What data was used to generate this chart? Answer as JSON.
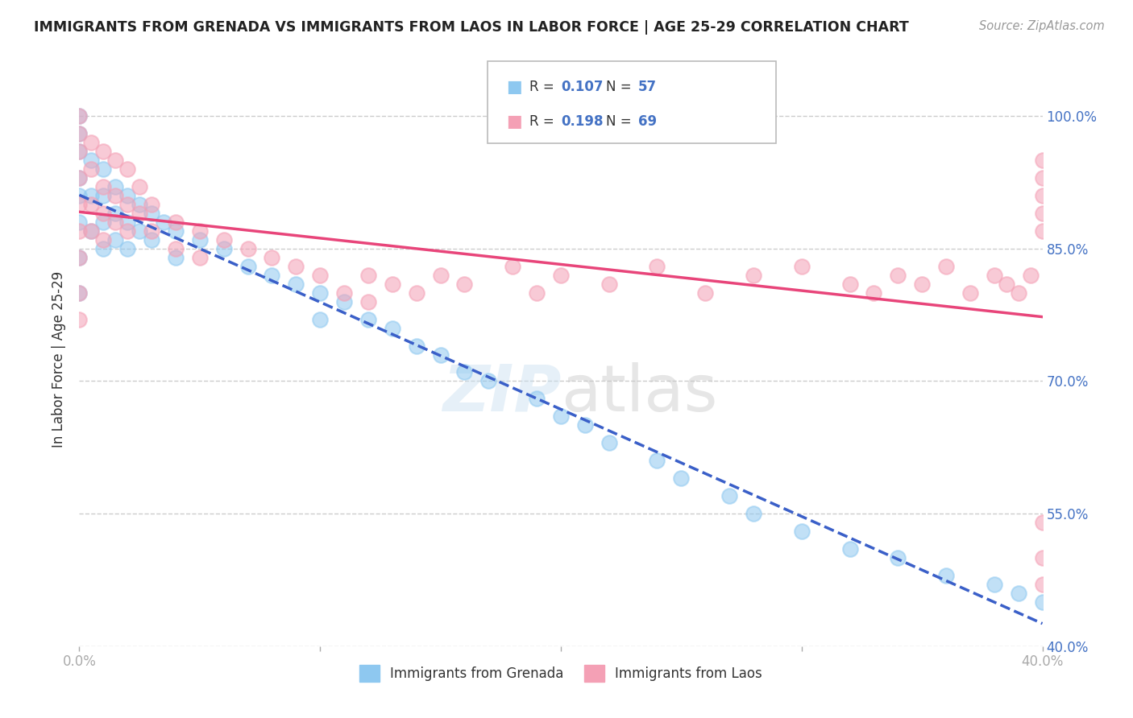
{
  "title": "IMMIGRANTS FROM GRENADA VS IMMIGRANTS FROM LAOS IN LABOR FORCE | AGE 25-29 CORRELATION CHART",
  "source": "Source: ZipAtlas.com",
  "ylabel": "In Labor Force | Age 25-29",
  "xmin": 0.0,
  "xmax": 0.4,
  "ymin": 0.4,
  "ymax": 1.05,
  "yticks": [
    0.4,
    0.55,
    0.7,
    0.85,
    1.0
  ],
  "ytick_labels": [
    "40.0%",
    "55.0%",
    "70.0%",
    "85.0%",
    "100.0%"
  ],
  "xticks": [
    0.0,
    0.1,
    0.2,
    0.3,
    0.4
  ],
  "xtick_labels": [
    "0.0%",
    "",
    "",
    "",
    "40.0%"
  ],
  "r_grenada": 0.107,
  "n_grenada": 57,
  "r_laos": 0.198,
  "n_laos": 69,
  "grenada_color": "#8ec8f0",
  "laos_color": "#f4a0b5",
  "trend_grenada_color": "#3a5fc8",
  "trend_laos_color": "#e8457a",
  "title_color": "#222222",
  "right_axis_color": "#4472c4",
  "background_color": "#ffffff",
  "grenada_x": [
    0.0,
    0.0,
    0.0,
    0.0,
    0.0,
    0.0,
    0.0,
    0.0,
    0.005,
    0.005,
    0.005,
    0.01,
    0.01,
    0.01,
    0.01,
    0.015,
    0.015,
    0.015,
    0.02,
    0.02,
    0.02,
    0.025,
    0.025,
    0.03,
    0.03,
    0.035,
    0.04,
    0.04,
    0.05,
    0.06,
    0.07,
    0.08,
    0.09,
    0.1,
    0.1,
    0.11,
    0.12,
    0.13,
    0.14,
    0.15,
    0.16,
    0.17,
    0.19,
    0.2,
    0.21,
    0.22,
    0.24,
    0.25,
    0.27,
    0.28,
    0.3,
    0.32,
    0.34,
    0.36,
    0.38,
    0.39,
    0.4
  ],
  "grenada_y": [
    1.0,
    0.98,
    0.96,
    0.93,
    0.91,
    0.88,
    0.84,
    0.8,
    0.95,
    0.91,
    0.87,
    0.94,
    0.91,
    0.88,
    0.85,
    0.92,
    0.89,
    0.86,
    0.91,
    0.88,
    0.85,
    0.9,
    0.87,
    0.89,
    0.86,
    0.88,
    0.87,
    0.84,
    0.86,
    0.85,
    0.83,
    0.82,
    0.81,
    0.8,
    0.77,
    0.79,
    0.77,
    0.76,
    0.74,
    0.73,
    0.71,
    0.7,
    0.68,
    0.66,
    0.65,
    0.63,
    0.61,
    0.59,
    0.57,
    0.55,
    0.53,
    0.51,
    0.5,
    0.48,
    0.47,
    0.46,
    0.45
  ],
  "laos_x": [
    0.0,
    0.0,
    0.0,
    0.0,
    0.0,
    0.0,
    0.0,
    0.0,
    0.0,
    0.005,
    0.005,
    0.005,
    0.005,
    0.01,
    0.01,
    0.01,
    0.01,
    0.015,
    0.015,
    0.015,
    0.02,
    0.02,
    0.02,
    0.025,
    0.025,
    0.03,
    0.03,
    0.04,
    0.04,
    0.05,
    0.05,
    0.06,
    0.07,
    0.08,
    0.09,
    0.1,
    0.11,
    0.12,
    0.12,
    0.13,
    0.14,
    0.15,
    0.16,
    0.18,
    0.19,
    0.2,
    0.22,
    0.24,
    0.26,
    0.28,
    0.3,
    0.32,
    0.33,
    0.34,
    0.35,
    0.36,
    0.37,
    0.38,
    0.385,
    0.39,
    0.395,
    0.4,
    0.4,
    0.4,
    0.4,
    0.4,
    0.4,
    0.4,
    0.4
  ],
  "laos_y": [
    1.0,
    0.98,
    0.96,
    0.93,
    0.9,
    0.87,
    0.84,
    0.8,
    0.77,
    0.97,
    0.94,
    0.9,
    0.87,
    0.96,
    0.92,
    0.89,
    0.86,
    0.95,
    0.91,
    0.88,
    0.94,
    0.9,
    0.87,
    0.92,
    0.89,
    0.9,
    0.87,
    0.88,
    0.85,
    0.87,
    0.84,
    0.86,
    0.85,
    0.84,
    0.83,
    0.82,
    0.8,
    0.82,
    0.79,
    0.81,
    0.8,
    0.82,
    0.81,
    0.83,
    0.8,
    0.82,
    0.81,
    0.83,
    0.8,
    0.82,
    0.83,
    0.81,
    0.8,
    0.82,
    0.81,
    0.83,
    0.8,
    0.82,
    0.81,
    0.8,
    0.82,
    0.95,
    0.93,
    0.91,
    0.89,
    0.87,
    0.54,
    0.5,
    0.47
  ]
}
